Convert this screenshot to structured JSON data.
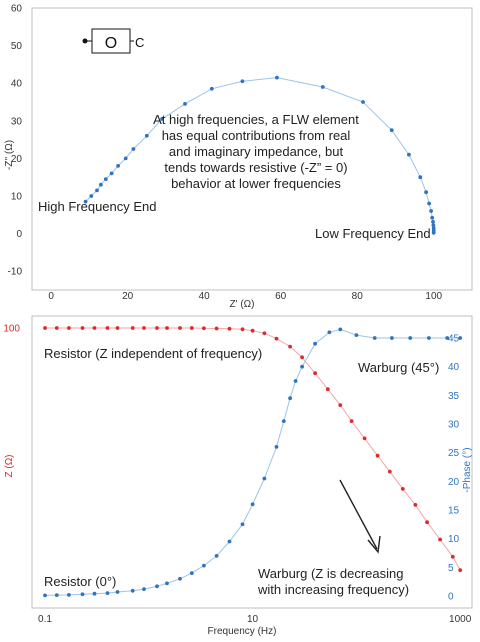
{
  "colors": {
    "blue": "#2f74c0",
    "blue_line": "#9cc4e8",
    "red": "#dd2a2a",
    "red_line": "#f2a7a7",
    "axis": "#bfbfbf",
    "text": "#222222"
  },
  "chart_data": [
    {
      "type": "scatter",
      "subtype": "nyquist",
      "xlabel": "Z' (Ω)",
      "ylabel": "-Z'' (Ω)",
      "xlim": [
        -5,
        110
      ],
      "ylim": [
        -15,
        60
      ],
      "x_ticks": [
        "0",
        "20",
        "40",
        "60",
        "80",
        "100"
      ],
      "y_ticks": [
        "-10",
        "0",
        "10",
        "20",
        "30",
        "40",
        "50",
        "60"
      ],
      "grid": false,
      "circuit_label": "O",
      "circuit_terminal": "C",
      "annotations": [
        "At high frequencies, a FLW element",
        "has equal contributions from real",
        "and imaginary impedance, but",
        "tends towards resistive (-Z” = 0)",
        "behavior at lower frequencies"
      ],
      "left_label": "High Frequency End",
      "right_label": "Low Frequency End",
      "series": [
        {
          "x": [
            9,
            10.5,
            12,
            13,
            14.3,
            15.8,
            17.5,
            19.5,
            21.5,
            25,
            29,
            35,
            42,
            50,
            59,
            71,
            81.5,
            89,
            93.5,
            96.5,
            98,
            98.8,
            99.3,
            99.6,
            99.8,
            99.9,
            100,
            100,
            100
          ],
          "y": [
            8.5,
            10,
            11.5,
            13,
            14.5,
            16,
            18,
            20,
            22.5,
            26,
            30.5,
            34.5,
            38.5,
            40.5,
            41.5,
            39,
            35,
            27.5,
            21,
            15,
            11,
            8,
            6,
            4.2,
            3.1,
            2.2,
            1.4,
            0.8,
            0.2
          ]
        }
      ]
    },
    {
      "type": "line",
      "subtype": "bode",
      "xlabel": "Frequency (Hz)",
      "x_scale": "log",
      "xlim": [
        0.075,
        1300
      ],
      "x_ticks": [
        "0.1",
        "10",
        "1000"
      ],
      "y_left_label": "Z (Ω)",
      "y_left_ticks": [
        "100"
      ],
      "y_left_lim": [
        0,
        100
      ],
      "y_right_label": "-Phase (°)",
      "y_right_ticks": [
        "0",
        "5",
        "10",
        "15",
        "20",
        "25",
        "30",
        "35",
        "40",
        "45"
      ],
      "y_right_lim": [
        0,
        47
      ],
      "grid": false,
      "labels": {
        "resistor_z": "Resistor (Z independent of frequency)",
        "warburg_phase": "Warburg (45°)",
        "resistor_phase": "Resistor (0°)",
        "warburg_z_1": "Warburg (Z is decreasing",
        "warburg_z_2": "with increasing frequency)"
      },
      "series": [
        {
          "name": "Z",
          "axis": "left",
          "x": [
            0.1,
            0.13,
            0.17,
            0.23,
            0.3,
            0.4,
            0.5,
            0.7,
            0.9,
            1.2,
            1.5,
            2,
            2.6,
            3.4,
            4.5,
            6,
            8,
            10,
            13,
            17,
            23,
            30,
            40,
            53,
            70,
            90,
            120,
            160,
            210,
            280,
            370,
            480,
            640,
            850,
            1000
          ],
          "y": [
            100,
            100,
            100,
            100,
            100,
            100,
            100,
            100,
            100,
            100,
            100,
            100,
            100,
            99.9,
            99.8,
            99.7,
            99.5,
            99,
            98,
            96,
            93,
            89,
            83,
            77,
            71,
            65,
            58.5,
            52,
            46,
            39.5,
            33.5,
            27,
            20.5,
            14,
            9
          ]
        },
        {
          "name": "-Phase",
          "axis": "right",
          "x": [
            0.1,
            0.13,
            0.17,
            0.23,
            0.3,
            0.4,
            0.5,
            0.7,
            0.9,
            1.2,
            1.5,
            2,
            2.6,
            3.4,
            4.5,
            6,
            8,
            10,
            13,
            17,
            20,
            23,
            26,
            30,
            40,
            55,
            70,
            100,
            150,
            220,
            330,
            500,
            750,
            1000
          ],
          "y": [
            0.1,
            0.15,
            0.2,
            0.3,
            0.4,
            0.5,
            0.7,
            0.9,
            1.2,
            1.7,
            2.2,
            3,
            4,
            5.3,
            7,
            9.5,
            12.5,
            16,
            20.5,
            26,
            30.5,
            34.5,
            37.5,
            40,
            44,
            46,
            46.5,
            45.5,
            45,
            45,
            45,
            45,
            45,
            45
          ]
        }
      ]
    }
  ]
}
